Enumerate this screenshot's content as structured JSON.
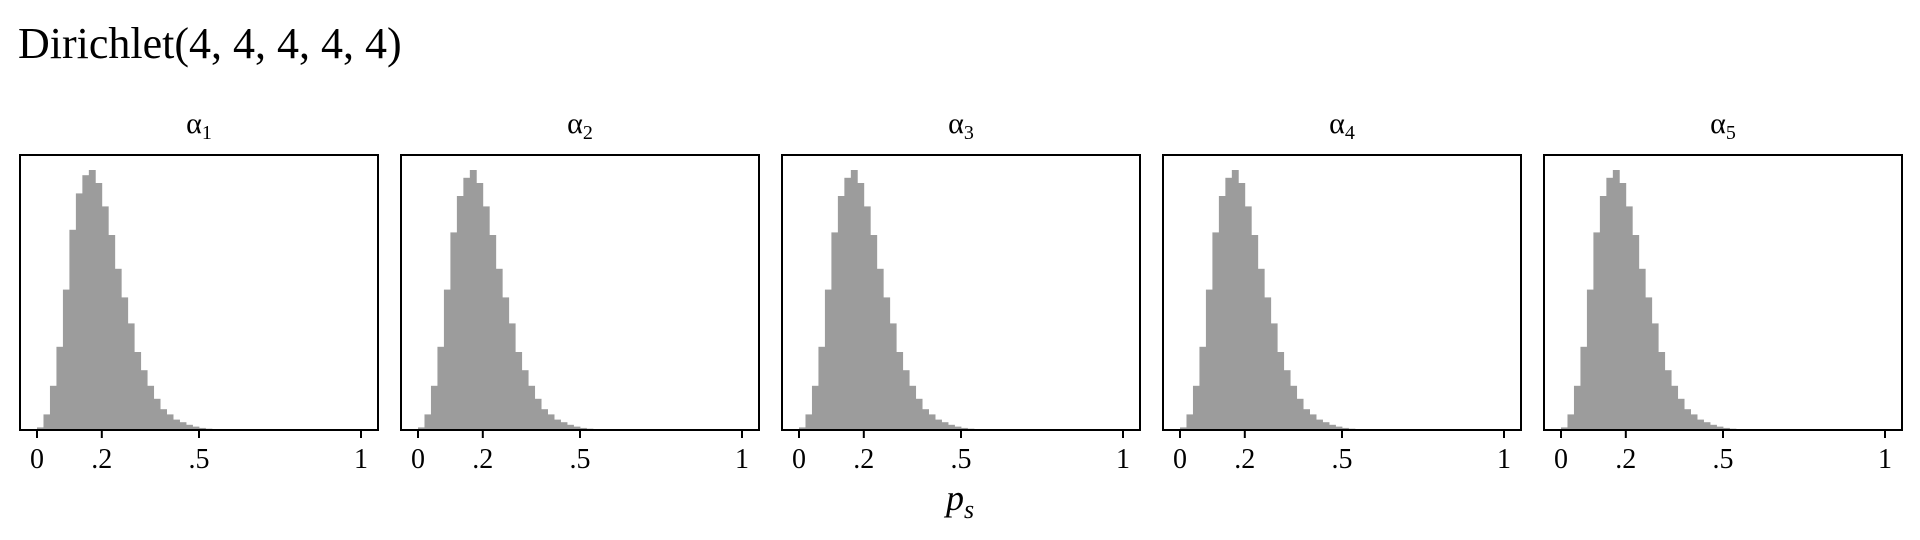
{
  "figure": {
    "title": "Dirichlet(4, 4, 4, 4, 4)",
    "xlabel": "p",
    "xlabel_sub": "s"
  },
  "chart_data": {
    "type": "bar",
    "xlim": [
      0,
      1
    ],
    "x_ticks": [
      0,
      0.2,
      0.5,
      1
    ],
    "x_tick_labels": [
      "0",
      ".2",
      ".5",
      "1"
    ],
    "y_ticks": [],
    "grid": false,
    "bin_width": 0.02,
    "panels": [
      {
        "title": "α",
        "title_sub": "1",
        "bin_start": 0.0,
        "values": [
          1,
          6,
          17,
          32,
          54,
          77,
          91,
          98,
          100,
          95,
          86,
          75,
          62,
          51,
          41,
          30,
          23,
          17,
          12,
          8,
          6,
          4,
          3,
          2,
          1.3,
          0.8,
          0.5,
          0.3,
          0.2,
          0.1,
          0.05
        ]
      },
      {
        "title": "α",
        "title_sub": "2",
        "bin_start": 0.0,
        "values": [
          1,
          6,
          17,
          32,
          54,
          76,
          90,
          97,
          100,
          95,
          86,
          75,
          62,
          51,
          41,
          30,
          23,
          17,
          12,
          8,
          6,
          4,
          3,
          2,
          1.3,
          0.8,
          0.5,
          0.3,
          0.2,
          0.1,
          0.05
        ]
      },
      {
        "title": "α",
        "title_sub": "3",
        "bin_start": 0.0,
        "values": [
          1,
          6,
          17,
          32,
          54,
          76,
          90,
          97,
          100,
          95,
          86,
          75,
          62,
          51,
          41,
          30,
          23,
          17,
          12,
          8,
          6,
          4,
          3,
          2,
          1.3,
          0.8,
          0.5,
          0.3,
          0.2,
          0.1,
          0.05
        ]
      },
      {
        "title": "α",
        "title_sub": "4",
        "bin_start": 0.0,
        "values": [
          1,
          6,
          17,
          32,
          54,
          76,
          90,
          97,
          100,
          95,
          86,
          75,
          62,
          51,
          41,
          30,
          23,
          17,
          12,
          8,
          6,
          4,
          3,
          2,
          1.3,
          0.8,
          0.5,
          0.3,
          0.2,
          0.1,
          0.05
        ]
      },
      {
        "title": "α",
        "title_sub": "5",
        "bin_start": 0.0,
        "values": [
          1,
          6,
          17,
          32,
          54,
          76,
          90,
          97,
          100,
          95,
          86,
          75,
          62,
          51,
          41,
          30,
          23,
          17,
          12,
          8,
          6,
          4,
          3,
          2,
          1.3,
          0.8,
          0.5,
          0.3,
          0.2,
          0.1,
          0.05
        ]
      }
    ]
  },
  "colors": {
    "bar": "#9c9c9c",
    "frame": "#000000"
  }
}
